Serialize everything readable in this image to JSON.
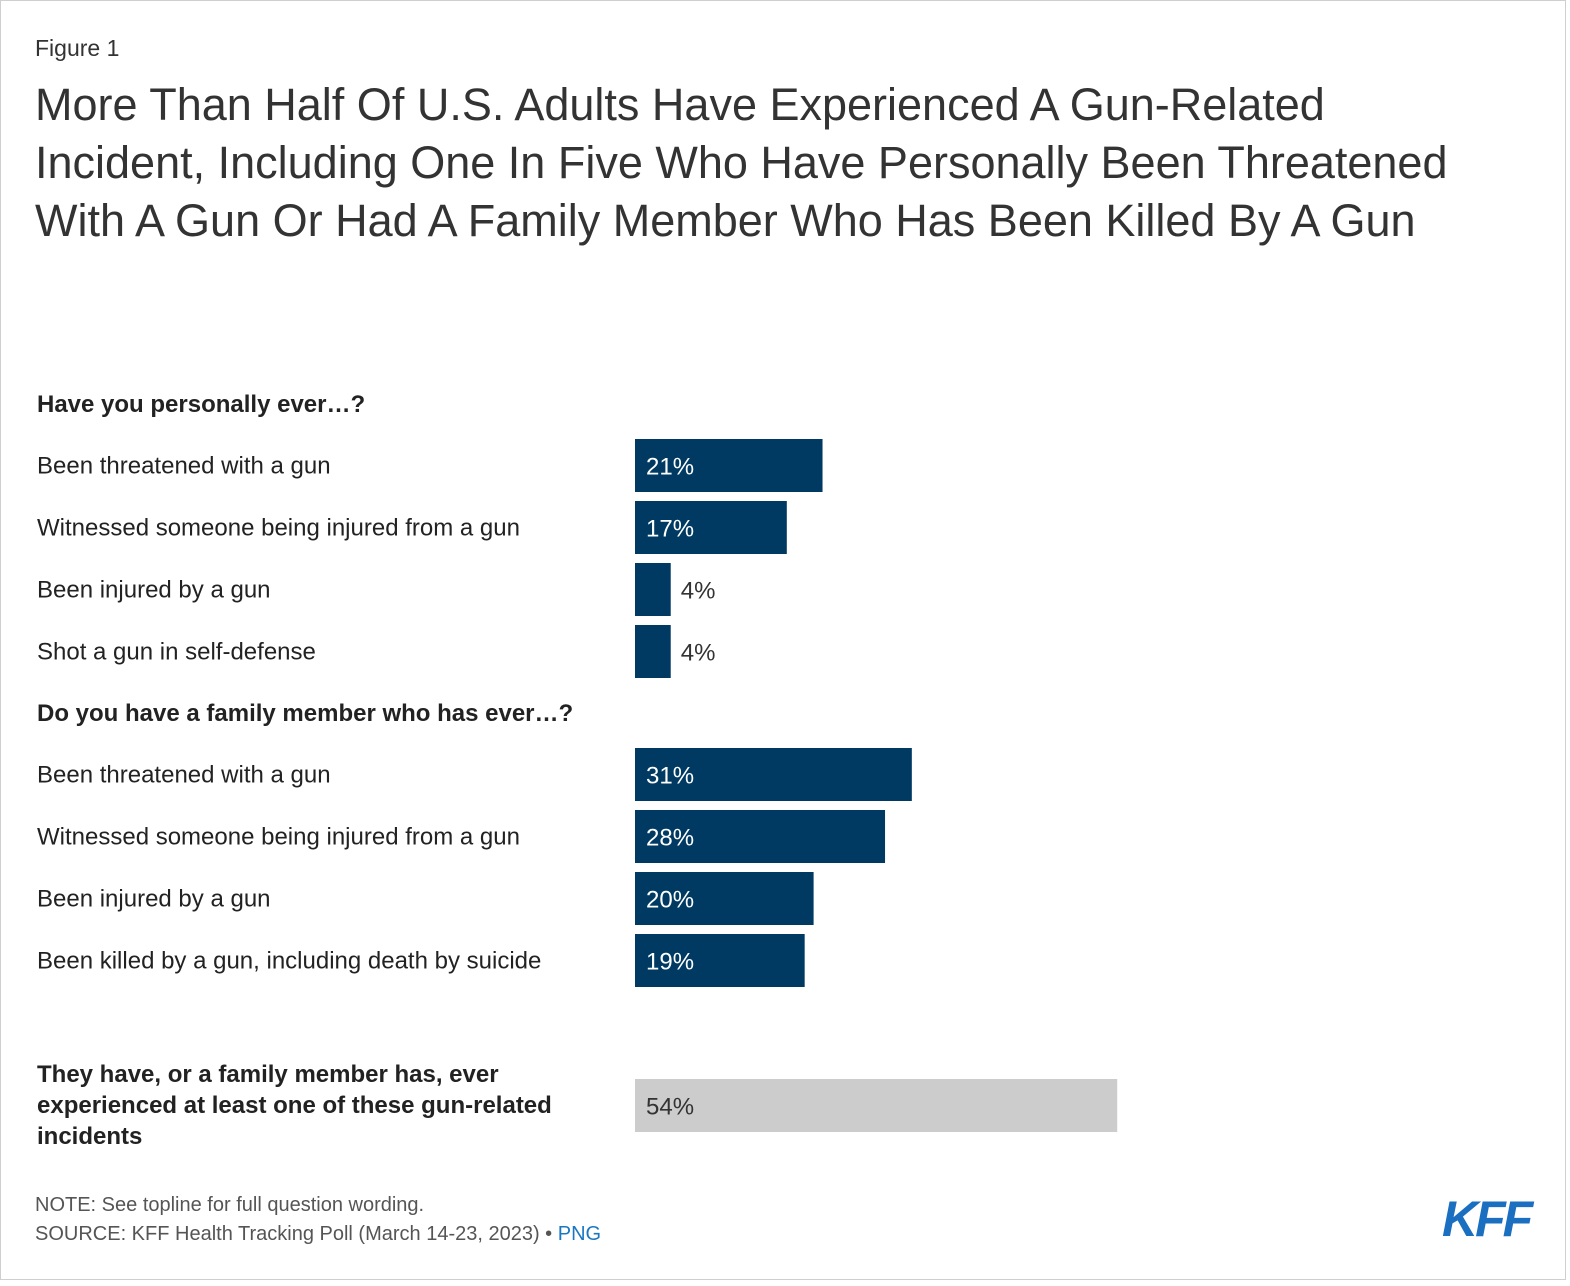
{
  "figure_label": "Figure 1",
  "title": "More Than Half Of U.S. Adults Have Experienced A Gun-Related Incident, Including One In Five Who Have Personally Been Threatened With A Gun Or Had A Family Member Who Has Been Killed By A Gun",
  "colors": {
    "bar_primary": "#003a62",
    "bar_total": "#cccccc",
    "label_inside": "#ffffff",
    "label_outside": "#333333",
    "label_total": "#333333",
    "logo": "#1a6fc0",
    "link": "#1a78c2"
  },
  "chart_data": {
    "type": "bar",
    "orientation": "horizontal",
    "unit": "%",
    "xlim": [
      0,
      100
    ],
    "groups": [
      {
        "heading": "Have you personally ever…?",
        "items": [
          {
            "label": "Been threatened with a gun",
            "value": 21
          },
          {
            "label": "Witnessed someone being injured from a gun",
            "value": 17
          },
          {
            "label": "Been injured by a gun",
            "value": 4
          },
          {
            "label": "Shot a gun in self-defense",
            "value": 4
          }
        ]
      },
      {
        "heading": "Do you have a family member who has ever…?",
        "items": [
          {
            "label": "Been threatened with a gun",
            "value": 31
          },
          {
            "label": "Witnessed someone being injured from a gun",
            "value": 28
          },
          {
            "label": "Been injured by a gun",
            "value": 20
          },
          {
            "label": "Been killed by a gun, including death by suicide",
            "value": 19
          }
        ]
      }
    ],
    "total": {
      "label_lines": [
        "They have, or a family member has, ever",
        "experienced at least one of these gun-related",
        "incidents"
      ],
      "value": 54
    }
  },
  "footer": {
    "note": "NOTE: See topline for full question wording.",
    "source": "SOURCE: KFF Health Tracking Poll (March 14-23, 2023) •",
    "source_link": "PNG",
    "logo": "KFF"
  }
}
